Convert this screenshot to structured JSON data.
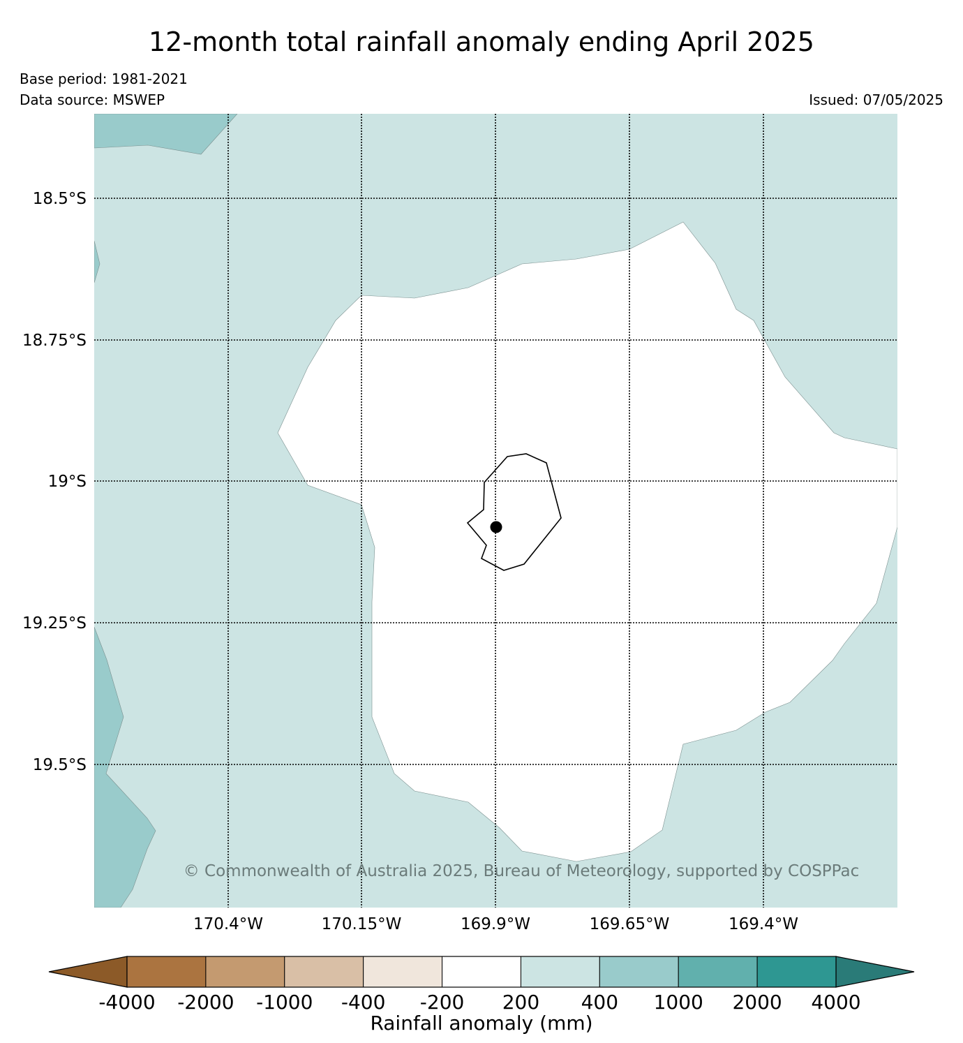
{
  "title": "12-month total rainfall anomaly ending April 2025",
  "base_period": "Base period: 1981-2021",
  "data_source": "Data source: MSWEP",
  "issued": "Issued: 07/05/2025",
  "copyright": "© Commonwealth of Australia 2025, Bureau of Meteorology, supported by COSPPac",
  "lat_labels": [
    "18.5°S",
    "18.75°S",
    "19°S",
    "19.25°S",
    "19.5°S"
  ],
  "lon_labels": [
    "170.4°W",
    "170.15°W",
    "169.9°W",
    "169.65°W",
    "169.4°W"
  ],
  "colorbar": {
    "label": "Rainfall anomaly (mm)",
    "ticks": [
      "-4000",
      "-2000",
      "-1000",
      "-400",
      "-200",
      "200",
      "400",
      "1000",
      "2000",
      "4000"
    ],
    "colors": [
      "#8c5a28",
      "#ab7440",
      "#c49a70",
      "#d9bfa6",
      "#f0e6dc",
      "#ffffff",
      "#cce4e3",
      "#99cbcb",
      "#61b0ad",
      "#2e9792",
      "#2a7b78"
    ]
  },
  "map_colors": {
    "level_200_400": "#cce4e3",
    "level_400_1000": "#99cbcb",
    "level_neg200_200": "#ffffff"
  }
}
